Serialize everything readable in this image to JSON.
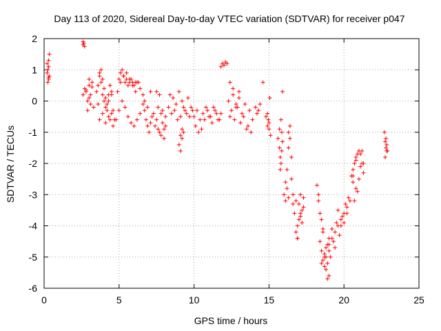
{
  "chart_data": {
    "type": "scatter",
    "title": "Day 113 of 2020, Sidereal Day-to-day VTEC variation (SDTVAR) for receiver p047",
    "xlabel": "GPS time / hours",
    "ylabel": "SDTVAR / TECUs",
    "xlim": [
      0,
      25
    ],
    "ylim": [
      -6,
      2
    ],
    "xticks": [
      0,
      5,
      10,
      15,
      20,
      25
    ],
    "yticks": [
      -6,
      -5,
      -4,
      -3,
      -2,
      -1,
      0,
      1,
      2
    ],
    "xtick_labels": [
      "0",
      "5",
      "10",
      "15",
      "20",
      "25"
    ],
    "ytick_labels": [
      "-6",
      "-5",
      "-4",
      "-3",
      "-2",
      "-1",
      "0",
      "1",
      "2"
    ],
    "grid": true,
    "marker": "plus",
    "color": "#ff0000",
    "series": [
      {
        "name": "SDTVAR",
        "x": [
          0.2,
          0.25,
          0.3,
          0.3,
          0.35,
          0.2,
          0.25,
          0.3,
          0.35,
          0.3,
          2.6,
          2.6,
          2.65,
          2.7,
          2.6,
          2.7,
          2.8,
          2.9,
          3.0,
          3.1,
          3.2,
          3.3,
          2.9,
          3.0,
          3.1,
          2.8,
          3.0,
          3.2,
          3.5,
          3.6,
          3.7,
          3.8,
          3.9,
          4.0,
          4.1,
          4.2,
          4.3,
          4.4,
          4.5,
          3.6,
          3.7,
          3.8,
          3.9,
          4.0,
          4.1,
          4.2,
          4.3,
          4.4,
          4.5,
          3.7,
          3.9,
          4.1,
          4.3,
          4.5,
          4.6,
          4.6,
          4.7,
          4.8,
          5.0,
          5.2,
          5.4,
          5.6,
          5.8,
          6.0,
          6.2,
          6.4,
          4.9,
          5.1,
          5.3,
          5.5,
          5.7,
          5.9,
          6.1,
          6.3,
          5.0,
          5.1,
          5.2,
          5.3,
          5.4,
          5.5,
          5.6,
          5.7,
          5.8,
          5.9,
          6.0,
          6.1,
          6.2,
          6.4,
          6.6,
          6.6,
          6.7,
          6.8,
          6.9,
          7.0,
          7.1,
          7.2,
          6.7,
          6.9,
          7.1,
          7.3,
          7.4,
          7.5,
          7.6,
          7.7,
          7.8,
          7.9,
          8.0,
          8.1,
          7.5,
          7.7,
          7.9,
          8.1,
          7.6,
          7.8,
          8.0,
          8.3,
          8.5,
          8.7,
          8.9,
          9.1,
          9.3,
          9.5,
          9.7,
          9.9,
          8.4,
          8.6,
          8.8,
          9.0,
          9.2,
          9.4,
          9.6,
          9.8,
          9.0,
          9.1,
          9.2,
          9.3,
          9.2,
          9.1,
          10.0,
          10.2,
          10.4,
          10.6,
          10.8,
          11.0,
          11.2,
          11.4,
          11.6,
          11.8,
          10.1,
          10.3,
          10.5,
          10.7,
          10.9,
          11.1,
          11.3,
          11.5,
          11.7,
          11.8,
          11.9,
          12.0,
          12.1,
          12.2,
          12.3,
          12.5,
          12.7,
          12.9,
          13.1,
          13.3,
          13.5,
          13.7,
          13.9,
          12.4,
          12.6,
          12.8,
          13.0,
          13.2,
          13.4,
          13.6,
          13.8,
          12.4,
          12.6,
          12.8,
          13.0,
          14.1,
          14.2,
          14.3,
          14.4,
          14.6,
          14.8,
          14.9,
          14.95,
          15.0,
          15.05,
          15.1,
          15.0,
          14.9,
          15.6,
          15.7,
          15.75,
          15.8,
          15.85,
          15.9,
          15.7,
          15.8,
          15.9,
          15.75,
          15.85,
          16.0,
          16.1,
          16.2,
          16.3,
          16.4,
          16.5,
          16.6,
          16.2,
          16.3,
          16.4,
          16.5,
          16.1,
          16.3,
          16.6,
          16.7,
          16.8,
          16.9,
          17.0,
          17.1,
          17.2,
          17.3,
          16.8,
          16.9,
          17.0,
          17.1,
          17.2,
          17.3,
          16.9,
          17.1,
          18.2,
          18.3,
          18.4,
          18.5,
          18.6,
          18.7,
          18.8,
          18.9,
          19.0,
          18.3,
          18.4,
          18.5,
          18.6,
          18.7,
          18.8,
          18.9,
          19.0,
          18.5,
          18.6,
          18.7,
          18.8,
          18.9,
          19.0,
          19.2,
          19.4,
          19.6,
          19.8,
          20.0,
          20.2,
          20.4,
          19.1,
          19.3,
          19.5,
          19.7,
          19.9,
          20.1,
          20.3,
          19.0,
          19.2,
          19.4,
          19.6,
          19.8,
          20.0,
          20.2,
          20.5,
          20.6,
          20.7,
          20.8,
          20.9,
          21.0,
          21.1,
          21.2,
          21.3,
          20.6,
          20.8,
          21.0,
          21.2,
          20.7,
          20.9,
          21.1,
          21.3,
          20.6,
          20.8,
          22.7,
          22.75,
          22.8,
          22.85,
          22.9,
          22.75,
          22.8,
          22.85
        ],
        "y": [
          1.2,
          1.0,
          1.1,
          0.7,
          0.8,
          0.9,
          0.6,
          1.3,
          1.5,
          0.75,
          1.8,
          1.9,
          1.85,
          1.75,
          0.2,
          0.4,
          0.3,
          0.0,
          0.5,
          0.2,
          0.6,
          -0.2,
          -0.3,
          0.1,
          -0.1,
          0.35,
          0.7,
          0.45,
          0.3,
          0.5,
          0.8,
          0.6,
          0.2,
          0.0,
          -0.2,
          -0.3,
          -0.5,
          -0.6,
          -0.4,
          -0.1,
          0.9,
          1.0,
          0.7,
          0.4,
          0.1,
          -0.1,
          0.2,
          0.5,
          0.3,
          -0.6,
          -0.4,
          -0.7,
          0.0,
          0.2,
          -0.8,
          -0.3,
          -0.6,
          -0.6,
          -0.3,
          0.0,
          -0.2,
          -0.5,
          -0.7,
          -0.8,
          -0.6,
          -0.4,
          0.3,
          0.6,
          0.8,
          0.9,
          0.7,
          0.5,
          0.3,
          0.6,
          0.7,
          0.9,
          1.0,
          0.8,
          0.6,
          0.7,
          0.5,
          0.6,
          0.7,
          0.6,
          0.5,
          0.6,
          0.6,
          0.4,
          0.2,
          -0.1,
          -0.3,
          -0.6,
          -0.8,
          -1.0,
          -0.7,
          -0.5,
          0.0,
          -0.2,
          0.3,
          -0.4,
          -0.8,
          -0.6,
          -0.9,
          -1.0,
          -1.1,
          -0.7,
          -0.9,
          -0.8,
          0.3,
          0.2,
          -0.3,
          -0.5,
          -0.2,
          -0.4,
          -1.2,
          -0.2,
          -0.4,
          -0.3,
          -0.6,
          -0.5,
          -0.2,
          -0.4,
          -0.5,
          -0.3,
          0.2,
          0.1,
          -0.1,
          0.3,
          0.0,
          -0.3,
          0.1,
          -0.2,
          -1.4,
          -1.6,
          -1.2,
          -1.0,
          -0.9,
          -1.1,
          -0.5,
          -0.3,
          -0.6,
          -0.4,
          -0.2,
          -0.5,
          -0.7,
          -0.3,
          -0.6,
          -0.4,
          -0.8,
          -1.0,
          -0.9,
          -0.6,
          -0.3,
          -0.5,
          -0.2,
          -0.4,
          -0.6,
          1.1,
          1.2,
          1.15,
          1.25,
          1.2,
          0.0,
          -0.3,
          -0.6,
          -0.2,
          -0.7,
          -0.5,
          -0.9,
          -0.3,
          -0.6,
          0.6,
          0.4,
          -0.2,
          0.3,
          -0.4,
          -0.1,
          -0.8,
          -1.0,
          -0.5,
          0.2,
          -0.1,
          0.1,
          -0.2,
          -0.4,
          -0.3,
          -0.1,
          0.6,
          -0.5,
          -0.8,
          -0.6,
          -0.7,
          0.1,
          -1.1,
          -0.9,
          -0.4,
          -1.2,
          -1.5,
          -1.8,
          -2.0,
          -1.6,
          -1.3,
          -0.9,
          -0.6,
          0.3,
          -2.2,
          -1.0,
          -3.0,
          -3.2,
          -2.2,
          -1.0,
          -0.8,
          -2.5,
          -3.0,
          -2.8,
          -1.5,
          -1.2,
          -1.8,
          -2.6,
          -3.1,
          -3.3,
          -3.6,
          -4.2,
          -4.4,
          -3.8,
          -3.0,
          -3.5,
          -3.4,
          -3.2,
          -4.0,
          -3.3,
          -3.6,
          -3.9,
          -3.1,
          -4.4,
          -3.7,
          -2.7,
          -3.0,
          -4.5,
          -4.8,
          -5.1,
          -5.3,
          -5.0,
          -4.6,
          -5.6,
          -3.2,
          -3.6,
          -5.2,
          -4.2,
          -4.9,
          -5.4,
          -5.7,
          -4.4,
          -3.8,
          -4.1,
          -5.0,
          -4.7,
          -5.2,
          -4.8,
          -4.4,
          -4.2,
          -4.0,
          -3.8,
          -3.6,
          -3.4,
          -3.2,
          -5.0,
          -4.5,
          -3.9,
          -4.3,
          -3.7,
          -3.3,
          -3.1,
          -4.6,
          -4.1,
          -4.7,
          -3.5,
          -4.0,
          -3.9,
          -3.6,
          -2.4,
          -2.2,
          -2.0,
          -1.9,
          -1.7,
          -1.6,
          -1.7,
          -2.0,
          -2.3,
          -2.6,
          -2.8,
          -2.5,
          -1.6,
          -3.2,
          -2.9,
          -2.1,
          -2.0,
          -2.4,
          -1.8,
          -1.0,
          -1.3,
          -1.5,
          -1.4,
          -1.6,
          -1.8,
          -1.2,
          -1.6
        ]
      }
    ]
  }
}
